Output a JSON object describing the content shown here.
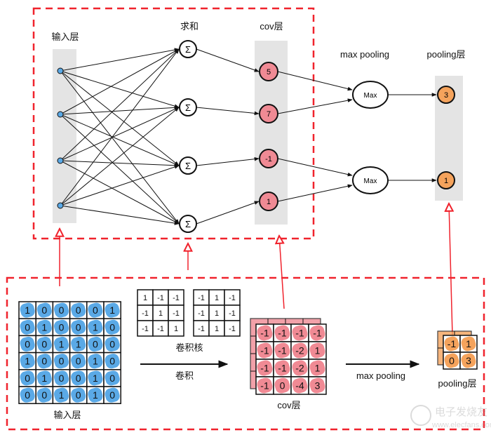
{
  "colors": {
    "frame": "#f0232d",
    "input": "#5aa9e6",
    "cov": "#f08a94",
    "pool": "#f5a35c",
    "strip": "#e4e4e4"
  },
  "top": {
    "labels": {
      "input": "输入层",
      "sum": "求和",
      "cov": "cov层",
      "max": "max pooling",
      "pooling": "pooling层"
    },
    "sum_symbol": "Σ",
    "max_label": "Max",
    "cov_nodes": [
      "5",
      "7",
      "-1",
      "1"
    ],
    "pool_nodes": [
      "3",
      "1"
    ]
  },
  "bottom": {
    "input_label": "输入层",
    "input_matrix": [
      [
        1,
        0,
        0,
        0,
        0,
        1
      ],
      [
        0,
        1,
        0,
        0,
        1,
        0
      ],
      [
        0,
        0,
        1,
        1,
        0,
        0
      ],
      [
        1,
        0,
        0,
        0,
        1,
        0
      ],
      [
        0,
        1,
        0,
        0,
        1,
        0
      ],
      [
        0,
        0,
        1,
        0,
        1,
        0
      ]
    ],
    "kernels": [
      [
        [
          1,
          -1,
          -1
        ],
        [
          -1,
          1,
          -1
        ],
        [
          -1,
          -1,
          1
        ]
      ],
      [
        [
          -1,
          1,
          -1
        ],
        [
          -1,
          1,
          -1
        ],
        [
          -1,
          1,
          -1
        ]
      ]
    ],
    "kernel_label": "卷积核",
    "conv_label": "卷积",
    "cov_matrix": [
      [
        -1,
        -1,
        -1,
        -1
      ],
      [
        -1,
        -1,
        -2,
        1
      ],
      [
        -1,
        -1,
        -2,
        1
      ],
      [
        -1,
        0,
        -4,
        3
      ]
    ],
    "cov_label": "cov层",
    "pool_arrow_label": "max pooling",
    "pool_matrix": [
      [
        -1,
        1
      ],
      [
        0,
        3
      ]
    ],
    "pool_label": "pooling层"
  },
  "watermark": {
    "name": "电子发烧友",
    "url": "www.elecfans.com"
  }
}
